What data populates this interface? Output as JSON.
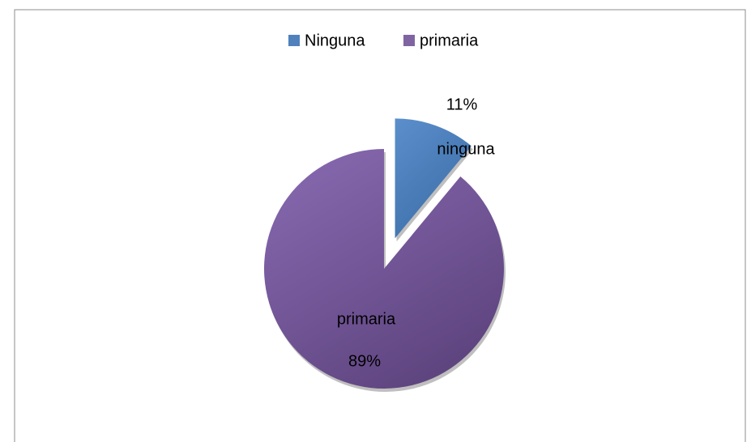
{
  "chart_data": {
    "type": "pie",
    "categories": [
      "Ninguna",
      "primaria"
    ],
    "data_labels": [
      "ninguna",
      "primaria"
    ],
    "values": [
      11,
      89
    ],
    "value_labels": [
      "11%",
      "89%"
    ],
    "colors": [
      "#4f81bd",
      "#8064a2"
    ],
    "legend": "top"
  }
}
